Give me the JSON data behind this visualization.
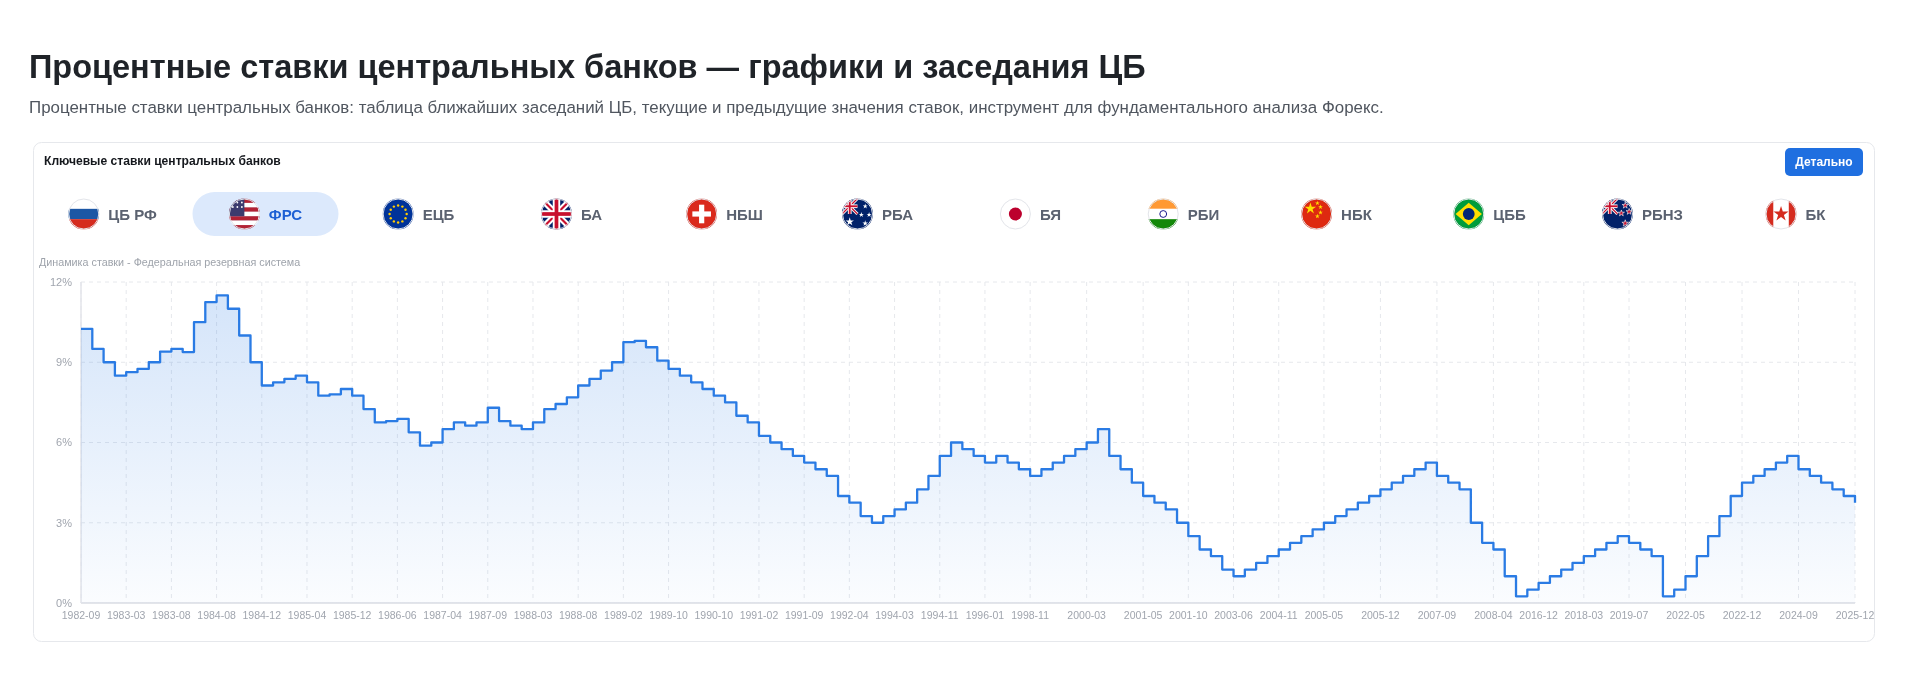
{
  "chart_data": {
    "type": "step",
    "title": "Процентные ставки центральных банков — графики и заседания ЦБ",
    "subtitle": "Процентные ставки центральных банков: таблица ближайших заседаний ЦБ, текущие и предыдущие значения ставок, инструмент для фундаментального анализа Форекс.",
    "annotations": [
      "Ключевые ставки центральных банков",
      "Детально",
      "ЦБ РФ",
      "ФРС",
      "ЕЦБ",
      "БА",
      "НБШ",
      "РБА",
      "БЯ",
      "РБИ",
      "НБК",
      "ЦББ",
      "РБНЗ",
      "БК",
      "Динамика ставки - Федеральная резервная система"
    ],
    "categories": [
      "1982-09",
      null,
      null,
      null,
      "1983-03",
      null,
      null,
      null,
      "1983-08",
      null,
      null,
      null,
      "1984-08",
      null,
      null,
      null,
      "1984-12",
      null,
      null,
      null,
      "1985-04",
      null,
      null,
      null,
      "1985-12",
      null,
      null,
      null,
      "1986-06",
      null,
      null,
      null,
      "1987-04",
      null,
      null,
      null,
      "1987-09",
      null,
      null,
      null,
      "1988-03",
      null,
      null,
      null,
      "1988-08",
      null,
      null,
      null,
      "1989-02",
      null,
      null,
      null,
      "1989-10",
      null,
      null,
      null,
      "1990-10",
      null,
      null,
      null,
      "1991-02",
      null,
      null,
      null,
      "1991-09",
      null,
      null,
      null,
      "1992-04",
      null,
      null,
      null,
      "1994-03",
      null,
      null,
      null,
      "1994-11",
      null,
      null,
      null,
      "1996-01",
      null,
      null,
      null,
      "1998-11",
      null,
      null,
      null,
      null,
      "2000-03",
      null,
      null,
      null,
      null,
      "2001-05",
      null,
      null,
      null,
      "2001-10",
      null,
      null,
      null,
      "2003-06",
      null,
      null,
      null,
      "2004-11",
      null,
      null,
      null,
      "2005-05",
      null,
      null,
      null,
      null,
      "2005-12",
      null,
      null,
      null,
      null,
      "2007-09",
      null,
      null,
      null,
      null,
      "2008-04",
      null,
      null,
      null,
      "2016-12",
      null,
      null,
      null,
      "2018-03",
      null,
      null,
      null,
      "2019-07",
      null,
      null,
      null,
      null,
      "2022-05",
      null,
      null,
      null,
      null,
      "2022-12",
      null,
      null,
      null,
      null,
      "2024-09",
      null,
      null,
      null,
      null,
      "2025-12"
    ],
    "series": [
      {
        "type": "area",
        "color": "#2a7be4",
        "values": [
          10.25,
          9.5,
          9.0,
          8.5,
          8.63,
          8.75,
          9.0,
          9.4,
          9.5,
          9.38,
          10.5,
          11.25,
          11.5,
          11.0,
          10.0,
          9.0,
          8.13,
          8.25,
          8.38,
          8.5,
          8.25,
          7.75,
          7.8,
          8.0,
          7.75,
          7.25,
          6.75,
          6.8,
          6.88,
          6.38,
          5.88,
          6.0,
          6.5,
          6.75,
          6.63,
          6.75,
          7.3,
          6.8,
          6.63,
          6.5,
          6.75,
          7.25,
          7.44,
          7.69,
          8.13,
          8.38,
          8.69,
          9.0,
          9.75,
          9.8,
          9.56,
          9.06,
          8.75,
          8.5,
          8.25,
          8.0,
          7.75,
          7.5,
          7.0,
          6.75,
          6.25,
          6.0,
          5.75,
          5.5,
          5.25,
          5.0,
          4.75,
          4.0,
          3.75,
          3.25,
          3.0,
          3.25,
          3.5,
          3.75,
          4.25,
          4.75,
          5.5,
          6.0,
          5.75,
          5.5,
          5.25,
          5.5,
          5.25,
          5.0,
          4.75,
          5.0,
          5.25,
          5.5,
          5.75,
          6.0,
          6.5,
          5.5,
          5.0,
          4.5,
          4.0,
          3.75,
          3.5,
          3.0,
          2.5,
          2.0,
          1.75,
          1.25,
          1.0,
          1.25,
          1.5,
          1.75,
          2.0,
          2.25,
          2.5,
          2.75,
          3.0,
          3.25,
          3.5,
          3.75,
          4.0,
          4.25,
          4.5,
          4.75,
          5.0,
          5.25,
          4.75,
          4.5,
          4.25,
          3.0,
          2.25,
          2.0,
          1.0,
          0.25,
          0.5,
          0.75,
          1.0,
          1.25,
          1.5,
          1.75,
          2.0,
          2.25,
          2.5,
          2.25,
          2.0,
          1.75,
          0.25,
          0.5,
          1.0,
          1.75,
          2.5,
          3.25,
          4.0,
          4.5,
          4.75,
          5.0,
          5.25,
          5.5,
          5.0,
          4.75,
          4.5,
          4.25,
          4.0,
          3.75
        ]
      }
    ],
    "ylim": [
      0,
      12
    ],
    "yticks": [
      {
        "value": 0,
        "label": "0%"
      },
      {
        "value": 3,
        "label": "3%"
      },
      {
        "value": 6,
        "label": "6%"
      },
      {
        "value": 9,
        "label": "9%"
      },
      {
        "value": 12,
        "label": "12%"
      }
    ],
    "grid": true
  }
}
